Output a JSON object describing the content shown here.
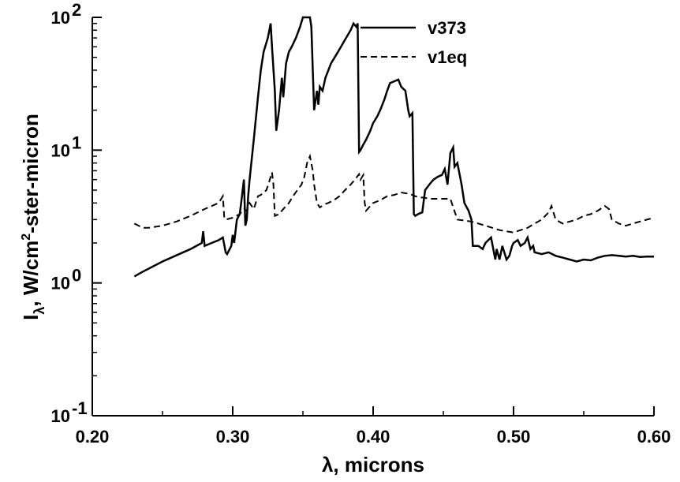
{
  "chart_data": {
    "type": "line",
    "xlabel": "λ, microns",
    "ylabel_main": "I",
    "ylabel_sub": "λ",
    "ylabel_rest": ", W/cm",
    "ylabel_sup": "2",
    "ylabel_tail": "-ster-micron",
    "x_scale": "linear",
    "y_scale": "log",
    "xlim": [
      0.2,
      0.6
    ],
    "ylim": [
      0.1,
      100
    ],
    "x_ticks": [
      "0.20",
      "0.30",
      "0.40",
      "0.50",
      "0.60"
    ],
    "y_ticks": [
      {
        "base": "10",
        "exp": "-1"
      },
      {
        "base": "10",
        "exp": "0"
      },
      {
        "base": "10",
        "exp": "1"
      },
      {
        "base": "10",
        "exp": "2"
      }
    ],
    "grid": false,
    "legend_position": "top-right",
    "series": [
      {
        "name": "v373",
        "style": "solid",
        "x": [
          0.23,
          0.235,
          0.25,
          0.27,
          0.278,
          0.279,
          0.28,
          0.285,
          0.29,
          0.293,
          0.295,
          0.296,
          0.299,
          0.3,
          0.301,
          0.303,
          0.305,
          0.306,
          0.308,
          0.309,
          0.31,
          0.311,
          0.312,
          0.315,
          0.318,
          0.32,
          0.322,
          0.325,
          0.327,
          0.328,
          0.33,
          0.331,
          0.333,
          0.335,
          0.336,
          0.338,
          0.34,
          0.342,
          0.345,
          0.348,
          0.35,
          0.352,
          0.354,
          0.355,
          0.356,
          0.357,
          0.358,
          0.36,
          0.361,
          0.362,
          0.364,
          0.366,
          0.37,
          0.375,
          0.38,
          0.384,
          0.386,
          0.388,
          0.389,
          0.39,
          0.391,
          0.393,
          0.395,
          0.398,
          0.4,
          0.403,
          0.405,
          0.408,
          0.41,
          0.412,
          0.415,
          0.418,
          0.42,
          0.423,
          0.425,
          0.426,
          0.428,
          0.429,
          0.43,
          0.432,
          0.435,
          0.437,
          0.44,
          0.443,
          0.446,
          0.449,
          0.451,
          0.453,
          0.455,
          0.457,
          0.458,
          0.46,
          0.463,
          0.465,
          0.468,
          0.47,
          0.471,
          0.475,
          0.478,
          0.48,
          0.482,
          0.484,
          0.486,
          0.487,
          0.488,
          0.49,
          0.492,
          0.495,
          0.497,
          0.499,
          0.5,
          0.503,
          0.505,
          0.508,
          0.51,
          0.512,
          0.514,
          0.515,
          0.52,
          0.525,
          0.53,
          0.535,
          0.54,
          0.545,
          0.55,
          0.555,
          0.56,
          0.565,
          0.57,
          0.575,
          0.58,
          0.585,
          0.59,
          0.595,
          0.6
        ],
        "y": [
          1.12,
          1.2,
          1.45,
          1.8,
          2.0,
          2.45,
          1.9,
          2.0,
          2.1,
          2.2,
          1.7,
          1.65,
          1.9,
          2.3,
          2.0,
          3.0,
          3.3,
          4.0,
          6.0,
          2.7,
          3.0,
          4.5,
          6.0,
          12.0,
          25.0,
          40.0,
          55.0,
          70.0,
          90.0,
          60.0,
          28.0,
          14.0,
          20.0,
          35.0,
          25.0,
          45.0,
          55.0,
          60.0,
          70.0,
          85.0,
          100.0,
          100.0,
          100.0,
          100.0,
          85.0,
          40.0,
          20.0,
          28.0,
          22.0,
          30.0,
          28.0,
          35.0,
          45.0,
          55.0,
          68.0,
          80.0,
          90.0,
          85.0,
          90.0,
          9.7,
          10.0,
          11.0,
          12.0,
          14.0,
          16.0,
          18.0,
          20.0,
          24.0,
          28.0,
          32.0,
          33.0,
          34.0,
          30.0,
          28.0,
          20.0,
          18.0,
          19.0,
          3.3,
          3.2,
          3.3,
          3.4,
          5.0,
          5.5,
          6.0,
          6.3,
          6.5,
          7.2,
          5.5,
          9.5,
          10.5,
          7.5,
          8.0,
          5.5,
          4.0,
          3.5,
          3.0,
          1.9,
          1.9,
          1.8,
          2.0,
          2.1,
          2.2,
          1.7,
          1.5,
          1.8,
          1.5,
          1.9,
          1.5,
          1.6,
          1.9,
          2.0,
          2.1,
          1.9,
          2.0,
          2.2,
          1.8,
          1.9,
          1.7,
          1.65,
          1.7,
          1.6,
          1.55,
          1.5,
          1.45,
          1.5,
          1.48,
          1.55,
          1.6,
          1.62,
          1.6,
          1.58,
          1.6,
          1.57,
          1.58,
          1.58
        ]
      },
      {
        "name": "v1eq",
        "style": "dashed",
        "x": [
          0.23,
          0.233,
          0.236,
          0.24,
          0.25,
          0.26,
          0.27,
          0.28,
          0.29,
          0.293,
          0.294,
          0.295,
          0.3,
          0.305,
          0.308,
          0.31,
          0.312,
          0.315,
          0.318,
          0.32,
          0.322,
          0.324,
          0.326,
          0.328,
          0.329,
          0.33,
          0.333,
          0.336,
          0.34,
          0.343,
          0.346,
          0.349,
          0.351,
          0.353,
          0.355,
          0.357,
          0.358,
          0.36,
          0.362,
          0.365,
          0.368,
          0.372,
          0.376,
          0.38,
          0.384,
          0.387,
          0.39,
          0.391,
          0.393,
          0.394,
          0.395,
          0.398,
          0.4,
          0.405,
          0.41,
          0.415,
          0.42,
          0.425,
          0.428,
          0.43,
          0.433,
          0.436,
          0.44,
          0.445,
          0.45,
          0.455,
          0.46,
          0.47,
          0.48,
          0.49,
          0.5,
          0.505,
          0.51,
          0.515,
          0.52,
          0.525,
          0.527,
          0.53,
          0.535,
          0.54,
          0.545,
          0.55,
          0.555,
          0.56,
          0.565,
          0.568,
          0.57,
          0.575,
          0.58,
          0.585,
          0.59,
          0.595,
          0.6
        ],
        "y": [
          2.8,
          2.7,
          2.6,
          2.6,
          2.7,
          2.9,
          3.2,
          3.6,
          4.0,
          4.5,
          3.1,
          3.0,
          3.1,
          3.3,
          3.6,
          3.5,
          4.0,
          3.6,
          4.5,
          4.6,
          4.8,
          5.0,
          5.8,
          6.8,
          5.5,
          3.2,
          3.3,
          3.6,
          4.0,
          4.5,
          5.0,
          5.5,
          6.3,
          8.0,
          9.0,
          7.0,
          5.5,
          4.0,
          3.7,
          3.9,
          4.0,
          4.2,
          4.5,
          5.0,
          5.5,
          6.0,
          6.6,
          6.0,
          6.5,
          4.0,
          3.5,
          3.8,
          4.0,
          4.2,
          4.5,
          4.6,
          4.8,
          4.7,
          4.6,
          4.5,
          4.4,
          4.4,
          4.3,
          4.3,
          4.3,
          4.3,
          3.0,
          2.9,
          2.7,
          2.5,
          2.4,
          2.5,
          2.6,
          2.8,
          3.0,
          3.4,
          3.8,
          3.0,
          2.8,
          2.9,
          3.0,
          3.2,
          3.3,
          3.5,
          3.8,
          3.6,
          3.0,
          2.8,
          2.7,
          2.8,
          2.9,
          3.0,
          3.1
        ]
      }
    ]
  }
}
